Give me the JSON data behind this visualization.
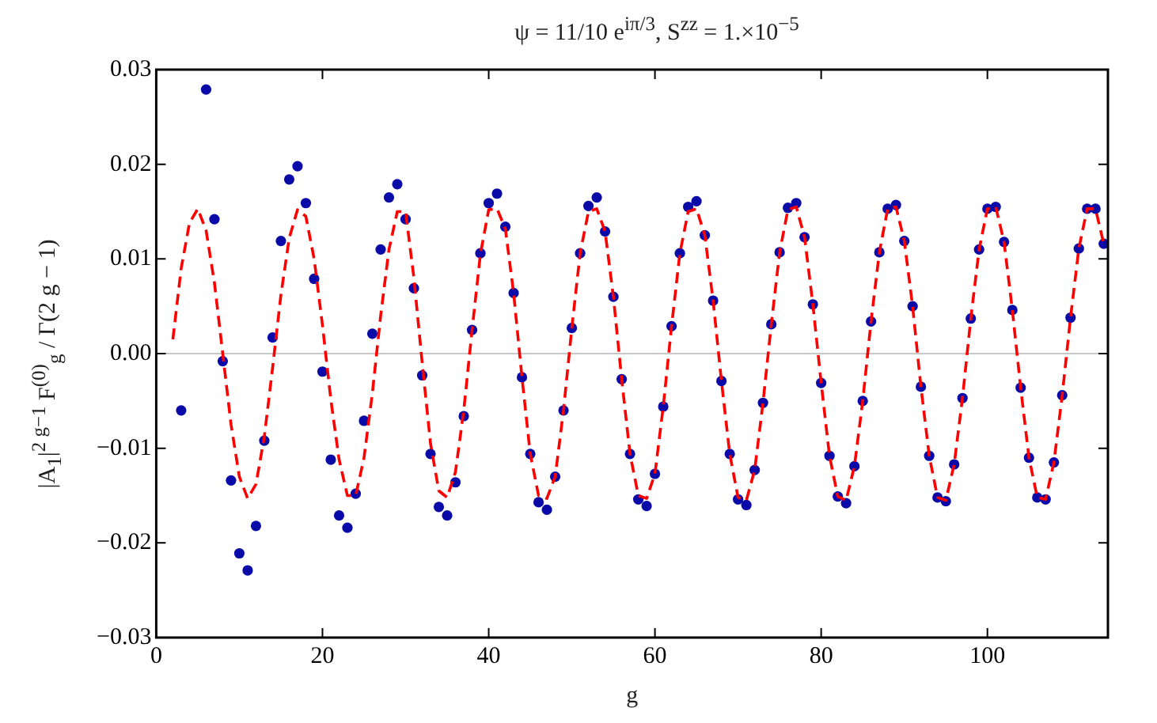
{
  "chart_data": {
    "type": "scatter",
    "title": "ψ = 11/10 e$^{iπ/3}$,     S$^{zz}$ = 1.×10$^{−5}$",
    "xlabel": "g",
    "ylabel": "|A$_{1}$|$^{2 g−1}$ F$^{(0)}$$_{g}$ / Γ(2 g − 1)",
    "xlim": [
      0,
      114.5
    ],
    "xticks": [
      0,
      20,
      40,
      60,
      80,
      100
    ],
    "ylim": [
      -0.03,
      0.03
    ],
    "yticks": [
      {
        "value": -0.03,
        "label": "−0.03"
      },
      {
        "value": -0.02,
        "label": "−0.02"
      },
      {
        "value": -0.01,
        "label": "−0.01"
      },
      {
        "value": 0,
        "label": "0.00"
      },
      {
        "value": 0.01,
        "label": "0.01"
      },
      {
        "value": 0.02,
        "label": "0.02"
      },
      {
        "value": 0.03,
        "label": "0.03"
      }
    ],
    "grid": false,
    "legend": false,
    "ref_lines": [
      {
        "axis": "y",
        "value": 0,
        "color": "#c8c8c8"
      }
    ],
    "series": [
      {
        "type": "line",
        "color": "#ff0000",
        "line_style": "dashed",
        "marker": "none",
        "x": [
          2,
          3,
          4,
          5,
          6,
          7,
          8,
          9,
          10,
          11,
          12,
          13,
          14,
          15,
          16,
          17,
          18,
          19,
          20,
          21,
          22,
          23,
          24,
          25,
          26,
          27,
          28,
          29,
          30,
          31,
          32,
          33,
          34,
          35,
          36,
          37,
          38,
          39,
          40,
          41,
          42,
          43,
          44,
          45,
          46,
          47,
          48,
          49,
          50,
          51,
          52,
          53,
          54,
          55,
          56,
          57,
          58,
          59,
          60,
          61,
          62,
          63,
          64,
          65,
          66,
          67,
          68,
          69,
          70,
          71,
          72,
          73,
          74,
          75,
          76,
          77,
          78,
          79,
          80,
          81,
          82,
          83,
          84,
          85,
          86,
          87,
          88,
          89,
          90,
          91,
          92,
          93,
          94,
          95,
          96,
          97,
          98,
          99,
          100,
          101,
          102,
          103,
          104,
          105,
          106,
          107,
          108,
          109,
          110,
          111,
          112,
          113,
          114
        ],
        "values": [
          0.0015,
          0.009,
          0.0138,
          0.0153,
          0.013,
          0.0075,
          0.0,
          -0.0075,
          -0.013,
          -0.0153,
          -0.0138,
          -0.0088,
          -0.0015,
          0.0062,
          0.0122,
          0.0152,
          0.0145,
          0.01,
          0.003,
          -0.0048,
          -0.0112,
          -0.015,
          -0.015,
          -0.011,
          -0.0042,
          0.004,
          0.011,
          0.015,
          0.015,
          0.008,
          -0.001,
          -0.0095,
          -0.0145,
          -0.0152,
          -0.0125,
          -0.006,
          0.0025,
          0.0105,
          0.0152,
          0.0153,
          0.0132,
          0.0064,
          -0.0025,
          -0.0106,
          -0.015,
          -0.0153,
          -0.013,
          -0.006,
          0.0027,
          0.0106,
          0.015,
          0.0153,
          0.0129,
          0.006,
          -0.0027,
          -0.0106,
          -0.015,
          -0.0153,
          -0.0127,
          -0.0056,
          0.0029,
          0.0106,
          0.015,
          0.0153,
          0.0125,
          0.0056,
          -0.0029,
          -0.0106,
          -0.0152,
          -0.0155,
          -0.0123,
          -0.0052,
          0.0031,
          0.0107,
          0.0152,
          0.0155,
          0.0123,
          0.0052,
          -0.0031,
          -0.0108,
          -0.0151,
          -0.0155,
          -0.0119,
          -0.005,
          0.0034,
          0.0107,
          0.0153,
          0.0155,
          0.0119,
          0.005,
          -0.0035,
          -0.0108,
          -0.0152,
          -0.0155,
          -0.0117,
          -0.0047,
          0.0037,
          0.011,
          0.0153,
          0.0155,
          0.0118,
          0.0046,
          -0.0036,
          -0.011,
          -0.0152,
          -0.0154,
          -0.0115,
          -0.0044,
          0.0038,
          0.0111,
          0.0153,
          0.0153,
          0.0116
        ]
      },
      {
        "color": "#0a0aa8",
        "marker": "circle",
        "x": [
          3,
          6,
          7,
          8,
          9,
          10,
          11,
          12,
          13,
          14,
          15,
          16,
          17,
          18,
          19,
          20,
          21,
          22,
          23,
          24,
          25,
          26,
          27,
          28,
          29,
          30,
          31,
          32,
          33,
          34,
          35,
          36,
          37,
          38,
          39,
          40,
          41,
          42,
          43,
          44,
          45,
          46,
          47,
          48,
          49,
          50,
          51,
          52,
          53,
          54,
          55,
          56,
          57,
          58,
          59,
          60,
          61,
          62,
          63,
          64,
          65,
          66,
          67,
          68,
          69,
          70,
          71,
          72,
          73,
          74,
          75,
          76,
          77,
          78,
          79,
          80,
          81,
          82,
          83,
          84,
          85,
          86,
          87,
          88,
          89,
          90,
          91,
          92,
          93,
          94,
          95,
          96,
          97,
          98,
          99,
          100,
          101,
          102,
          103,
          104,
          105,
          106,
          107,
          108,
          109,
          110,
          111,
          112,
          113,
          114
        ],
        "values": [
          -0.006,
          0.0279,
          0.0142,
          -0.0008,
          -0.0134,
          -0.0211,
          -0.0229,
          -0.0182,
          -0.0092,
          0.0017,
          0.0119,
          0.0184,
          0.0198,
          0.0159,
          0.0079,
          -0.0019,
          -0.0112,
          -0.0171,
          -0.0184,
          -0.0148,
          -0.0071,
          0.0021,
          0.011,
          0.0165,
          0.0179,
          0.0142,
          0.0069,
          -0.0023,
          -0.0106,
          -0.0162,
          -0.0171,
          -0.0136,
          -0.0066,
          0.0025,
          0.0106,
          0.0159,
          0.0169,
          0.0134,
          0.0064,
          -0.0025,
          -0.0106,
          -0.0157,
          -0.0165,
          -0.013,
          -0.006,
          0.0027,
          0.0106,
          0.0156,
          0.0165,
          0.0129,
          0.006,
          -0.0027,
          -0.0106,
          -0.0154,
          -0.0161,
          -0.0127,
          -0.0056,
          0.0029,
          0.0106,
          0.0155,
          0.0161,
          0.0125,
          0.0056,
          -0.0029,
          -0.0106,
          -0.0154,
          -0.016,
          -0.0123,
          -0.0052,
          0.0031,
          0.0107,
          0.0154,
          0.0159,
          0.0123,
          0.0052,
          -0.0031,
          -0.0108,
          -0.0151,
          -0.0158,
          -0.0119,
          -0.005,
          0.0034,
          0.0107,
          0.0153,
          0.0157,
          0.0119,
          0.005,
          -0.0035,
          -0.0108,
          -0.0152,
          -0.0156,
          -0.0117,
          -0.0047,
          0.0037,
          0.011,
          0.0153,
          0.0155,
          0.0118,
          0.0046,
          -0.0036,
          -0.011,
          -0.0152,
          -0.0154,
          -0.0115,
          -0.0044,
          0.0038,
          0.0111,
          0.0153,
          0.0153,
          0.0116
        ]
      }
    ]
  }
}
